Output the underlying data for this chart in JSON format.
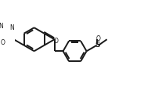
{
  "background_color": "#ffffff",
  "line_color": "#1a1a1a",
  "line_width": 1.4,
  "figsize": [
    1.84,
    1.11
  ],
  "dpi": 100,
  "xlim": [
    -2.5,
    7.5
  ],
  "ylim": [
    -3.5,
    3.8
  ]
}
